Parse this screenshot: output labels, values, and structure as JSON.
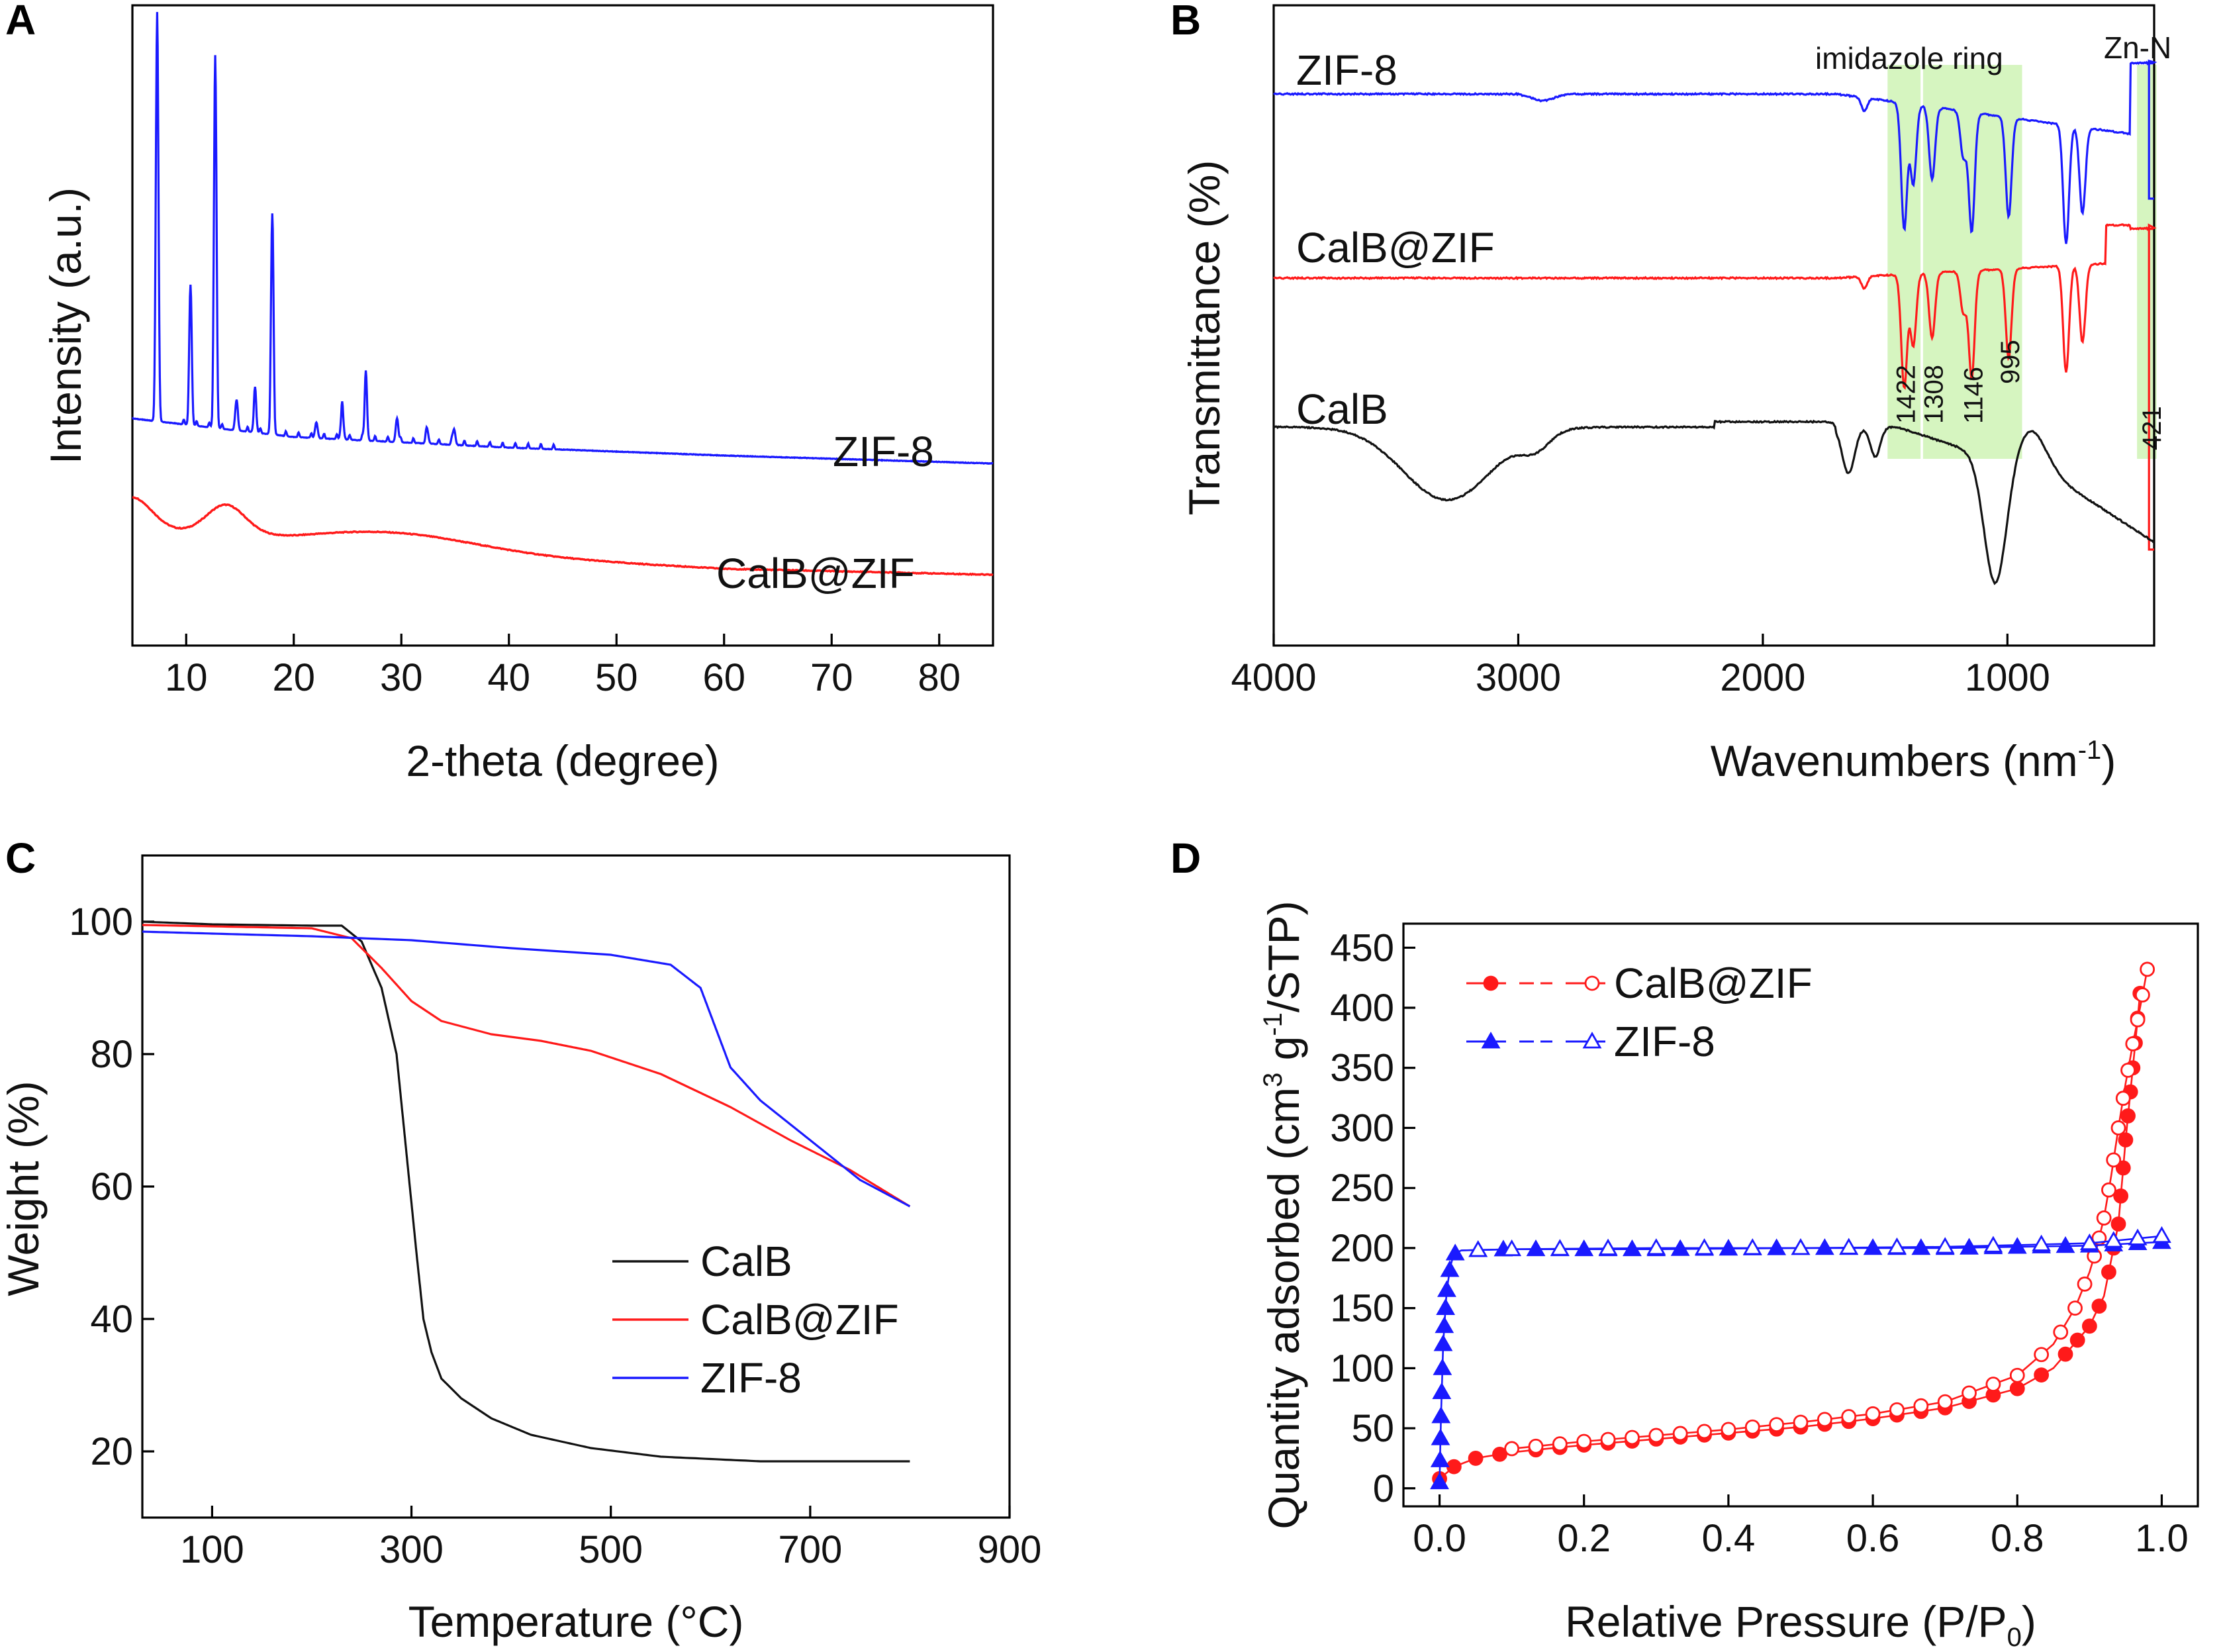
{
  "colors": {
    "blue": "#1a1aff",
    "red": "#ff1a1a",
    "black": "#111111",
    "band": "#d6f5c0"
  },
  "chart_data": [
    {
      "panel": "A",
      "type": "line",
      "xlabel": "2-theta (degree)",
      "ylabel": "Intensity (a.u.)",
      "xlim": [
        5,
        85
      ],
      "xticks": [
        10,
        20,
        30,
        40,
        50,
        60,
        70,
        80
      ],
      "peaks": [
        [
          7.3,
          1.0
        ],
        [
          10.4,
          0.35
        ],
        [
          12.7,
          0.92
        ],
        [
          14.7,
          0.09
        ],
        [
          16.4,
          0.13
        ],
        [
          18.0,
          0.55
        ],
        [
          22.1,
          0.06
        ],
        [
          24.5,
          0.12
        ],
        [
          26.7,
          0.2
        ],
        [
          29.6,
          0.09
        ],
        [
          32.4,
          0.05
        ],
        [
          34.9,
          0.06
        ]
      ],
      "series": [
        {
          "name": "ZIF-8",
          "color": "#1a1aff",
          "baseline": [
            [
              5,
              0.0
            ],
            [
              20,
              -0.07
            ],
            [
              40,
              -0.11
            ],
            [
              60,
              -0.14
            ],
            [
              85,
              -0.17
            ]
          ],
          "label": "ZIF-8"
        },
        {
          "name": "CalB@ZIF",
          "color": "#ff1a1a",
          "humps": [
            [
              5,
              0.05
            ],
            [
              13.7,
              0.05
            ],
            [
              29.0,
              0.03
            ]
          ],
          "baseline": [
            [
              5,
              0.0
            ],
            [
              20,
              -0.03
            ],
            [
              40,
              -0.05
            ],
            [
              60,
              -0.07
            ],
            [
              85,
              -0.08
            ]
          ],
          "label": "CalB@ZIF"
        }
      ]
    },
    {
      "panel": "B",
      "type": "line",
      "xlabel": "Wavenumbers (nm",
      "xlabel_sup": "-1",
      "xlabel_end": ")",
      "ylabel": "Transmittance (%)",
      "xlim": [
        4000,
        400
      ],
      "xticks": [
        4000,
        3000,
        2000,
        1000
      ],
      "bands": [
        {
          "from": 1490,
          "to": 1355,
          "label": "imidazole ring"
        },
        {
          "from": 1345,
          "to": 940,
          "label": ""
        },
        {
          "from": 470,
          "to": 390,
          "label": "Zn-N"
        }
      ],
      "peak_labels": [
        "1422",
        "1308",
        "1146",
        "995",
        "421"
      ],
      "peak_positions": [
        1422,
        1308,
        1146,
        995,
        421
      ],
      "series": [
        {
          "name": "ZIF-8",
          "color": "#1a1aff",
          "label": "ZIF-8"
        },
        {
          "name": "CalB@ZIF",
          "color": "#ff1a1a",
          "label": "CalB@ZIF"
        },
        {
          "name": "CalB",
          "color": "#111111",
          "label": "CalB"
        }
      ]
    },
    {
      "panel": "C",
      "type": "line",
      "xlabel": "Temperature (°C)",
      "ylabel": "Weight (%)",
      "xlim": [
        30,
        900
      ],
      "ylim": [
        10,
        110
      ],
      "xticks": [
        100,
        300,
        500,
        700,
        900
      ],
      "yticks": [
        20,
        40,
        60,
        80,
        100
      ],
      "series": [
        {
          "name": "CalB",
          "color": "#111111",
          "x": [
            30,
            100,
            200,
            230,
            250,
            270,
            285,
            295,
            305,
            312,
            320,
            330,
            350,
            380,
            420,
            480,
            550,
            650,
            800
          ],
          "y": [
            100,
            99.6,
            99.4,
            99.4,
            97,
            90,
            80,
            65,
            50,
            40,
            35,
            31,
            28,
            25,
            22.5,
            20.5,
            19.2,
            18.5,
            18.5
          ]
        },
        {
          "name": "CalB@ZIF",
          "color": "#ff1a1a",
          "x": [
            30,
            100,
            200,
            240,
            270,
            300,
            330,
            380,
            430,
            480,
            550,
            620,
            680,
            740,
            800
          ],
          "y": [
            99.5,
            99.3,
            99,
            97.5,
            93,
            88,
            85,
            83,
            82,
            80.5,
            77,
            72,
            67,
            62.5,
            57
          ]
        },
        {
          "name": "ZIF-8",
          "color": "#1a1aff",
          "x": [
            30,
            100,
            200,
            300,
            400,
            500,
            560,
            590,
            605,
            620,
            650,
            700,
            750,
            800
          ],
          "y": [
            98.5,
            98.2,
            97.8,
            97.2,
            96,
            95,
            93.5,
            90,
            84,
            78,
            73,
            67,
            61,
            57
          ]
        }
      ],
      "legend": [
        "CalB",
        "CalB@ZIF",
        "ZIF-8"
      ]
    },
    {
      "panel": "D",
      "type": "scatter",
      "xlabel": "Relative Pressure (P/P",
      "xlabel_sub": "0",
      "xlabel_end": ")",
      "ylabel": "Quantity adsorbed (cm",
      "ylabel_sup": "3",
      "ylabel_mid": " g",
      "ylabel_sup2": "-1",
      "ylabel_end": "/STP)",
      "xlim": [
        -0.05,
        1.05
      ],
      "ylim": [
        -15,
        470
      ],
      "xticks": [
        "0.0",
        "0.2",
        "0.4",
        "0.6",
        "0.8",
        "1.0"
      ],
      "yticks": [
        "0",
        "50",
        "100",
        "150",
        "200",
        "250",
        "300",
        "350",
        "400",
        "450"
      ],
      "series": [
        {
          "name": "CalB@ZIF",
          "color": "#ff1a1a",
          "adsorption": [
            [
              0.0,
              8
            ],
            [
              0.02,
              18
            ],
            [
              0.05,
              25
            ],
            [
              0.1,
              30
            ],
            [
              0.2,
              36
            ],
            [
              0.3,
              41
            ],
            [
              0.4,
              46
            ],
            [
              0.5,
              51
            ],
            [
              0.6,
              58
            ],
            [
              0.7,
              67
            ],
            [
              0.8,
              83
            ],
            [
              0.85,
              100
            ],
            [
              0.9,
              135
            ],
            [
              0.92,
              160
            ],
            [
              0.94,
              220
            ],
            [
              0.95,
              290
            ],
            [
              0.96,
              350
            ],
            [
              0.97,
              412
            ]
          ],
          "desorption": [
            [
              0.98,
              432
            ],
            [
              0.97,
              400
            ],
            [
              0.96,
              370
            ],
            [
              0.95,
              337
            ],
            [
              0.94,
              300
            ],
            [
              0.93,
              260
            ],
            [
              0.92,
              225
            ],
            [
              0.91,
              200
            ],
            [
              0.9,
              180
            ],
            [
              0.88,
              150
            ],
            [
              0.85,
              120
            ],
            [
              0.8,
              94
            ],
            [
              0.7,
              72
            ],
            [
              0.6,
              62
            ],
            [
              0.5,
              55
            ],
            [
              0.4,
              49
            ],
            [
              0.3,
              44
            ],
            [
              0.2,
              39
            ],
            [
              0.1,
              33
            ]
          ]
        },
        {
          "name": "ZIF-8",
          "color": "#1a1aff",
          "adsorption": [
            [
              0.0,
              5
            ],
            [
              0.002,
              60
            ],
            [
              0.005,
              120
            ],
            [
              0.01,
              165
            ],
            [
              0.015,
              185
            ],
            [
              0.02,
              195
            ],
            [
              0.03,
              198
            ],
            [
              0.1,
              199
            ],
            [
              0.3,
              199
            ],
            [
              0.5,
              200
            ],
            [
              0.7,
              200
            ],
            [
              0.9,
              202
            ],
            [
              1.0,
              205
            ]
          ],
          "desorption": [
            [
              1.0,
              210
            ],
            [
              0.9,
              204
            ],
            [
              0.7,
              201
            ],
            [
              0.5,
              200
            ],
            [
              0.3,
              200
            ],
            [
              0.1,
              199
            ],
            [
              0.03,
              198
            ]
          ]
        }
      ],
      "legend": [
        "CalB@ZIF",
        "ZIF-8"
      ]
    }
  ]
}
